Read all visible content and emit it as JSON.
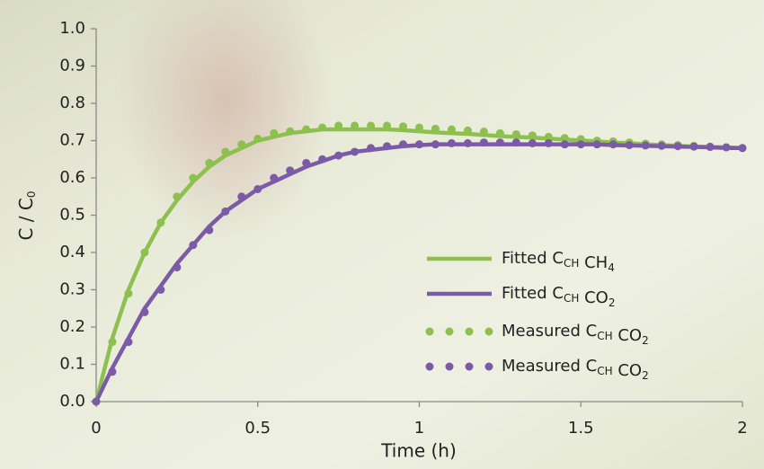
{
  "chart_data": {
    "type": "line",
    "x_label": "Time (h)",
    "y_label": [
      "C / C",
      {
        "sub": "0"
      }
    ],
    "x": [
      0,
      0.05,
      0.1,
      0.15,
      0.2,
      0.25,
      0.3,
      0.35,
      0.4,
      0.45,
      0.5,
      0.55,
      0.6,
      0.65,
      0.7,
      0.75,
      0.8,
      0.85,
      0.9,
      0.95,
      1,
      1.05,
      1.1,
      1.15,
      1.2,
      1.25,
      1.3,
      1.35,
      1.4,
      1.45,
      1.5,
      1.55,
      1.6,
      1.65,
      1.7,
      1.75,
      1.8,
      1.85,
      1.9,
      1.95,
      2
    ],
    "series": [
      {
        "name": [
          "Fitted C",
          {
            "sub": "CH"
          },
          " CH",
          {
            "sub": "4"
          }
        ],
        "color": "#8dc04f",
        "mode": "line",
        "values": [
          0,
          0.17,
          0.3,
          0.4,
          0.48,
          0.54,
          0.59,
          0.63,
          0.66,
          0.68,
          0.7,
          0.71,
          0.72,
          0.725,
          0.73,
          0.73,
          0.73,
          0.73,
          0.73,
          0.728,
          0.725,
          0.722,
          0.72,
          0.718,
          0.715,
          0.712,
          0.71,
          0.708,
          0.705,
          0.703,
          0.7,
          0.698,
          0.695,
          0.693,
          0.69,
          0.688,
          0.686,
          0.684,
          0.683,
          0.682,
          0.68
        ]
      },
      {
        "name": [
          "Fitted C",
          {
            "sub": "CH"
          },
          " CO",
          {
            "sub": "2"
          }
        ],
        "color": "#7b5aa6",
        "mode": "line",
        "values": [
          0,
          0.09,
          0.17,
          0.25,
          0.31,
          0.37,
          0.42,
          0.47,
          0.51,
          0.54,
          0.57,
          0.59,
          0.61,
          0.63,
          0.645,
          0.66,
          0.67,
          0.675,
          0.68,
          0.685,
          0.688,
          0.69,
          0.69,
          0.69,
          0.69,
          0.69,
          0.69,
          0.69,
          0.69,
          0.69,
          0.69,
          0.69,
          0.688,
          0.687,
          0.686,
          0.685,
          0.684,
          0.683,
          0.682,
          0.68,
          0.68
        ]
      },
      {
        "name": [
          "Measured C",
          {
            "sub": "CH"
          },
          " CO",
          {
            "sub": "2"
          }
        ],
        "color": "#8dc04f",
        "mode": "markers",
        "values": [
          0,
          0.16,
          0.29,
          0.4,
          0.48,
          0.55,
          0.6,
          0.64,
          0.67,
          0.69,
          0.705,
          0.72,
          0.725,
          0.73,
          0.735,
          0.74,
          0.74,
          0.74,
          0.74,
          0.738,
          0.735,
          0.732,
          0.73,
          0.727,
          0.724,
          0.72,
          0.717,
          0.714,
          0.71,
          0.707,
          0.704,
          0.7,
          0.698,
          0.695,
          0.692,
          0.69,
          0.688,
          0.686,
          0.684,
          0.682,
          0.68
        ]
      },
      {
        "name": [
          "Measured C",
          {
            "sub": "CH"
          },
          " CO",
          {
            "sub": "2"
          }
        ],
        "color": "#7b5aa6",
        "mode": "markers",
        "values": [
          0,
          0.08,
          0.16,
          0.24,
          0.3,
          0.36,
          0.42,
          0.46,
          0.51,
          0.55,
          0.57,
          0.6,
          0.62,
          0.64,
          0.65,
          0.66,
          0.67,
          0.68,
          0.685,
          0.69,
          0.69,
          0.69,
          0.693,
          0.693,
          0.695,
          0.695,
          0.695,
          0.693,
          0.693,
          0.69,
          0.69,
          0.69,
          0.69,
          0.688,
          0.687,
          0.686,
          0.685,
          0.684,
          0.683,
          0.682,
          0.68
        ]
      }
    ],
    "xlim": [
      0,
      2
    ],
    "xticks": [
      0,
      0.5,
      1,
      1.5,
      2
    ],
    "ylim": [
      0,
      1
    ],
    "yticks": [
      {
        "value": 0,
        "label": "0.0"
      },
      {
        "value": 0.1,
        "label": "0.1"
      },
      {
        "value": 0.2,
        "label": "0.2"
      },
      {
        "value": 0.3,
        "label": "0.3"
      },
      {
        "value": 0.4,
        "label": "0.4"
      },
      {
        "value": 0.5,
        "label": "0.5"
      },
      {
        "value": 0.6,
        "label": "0.6"
      },
      {
        "value": 0.7,
        "label": "0.7"
      },
      {
        "value": 0.8,
        "label": "0.8"
      },
      {
        "value": 0.9,
        "label": "0.9"
      },
      {
        "value": 1,
        "label": "1.0"
      }
    ]
  }
}
